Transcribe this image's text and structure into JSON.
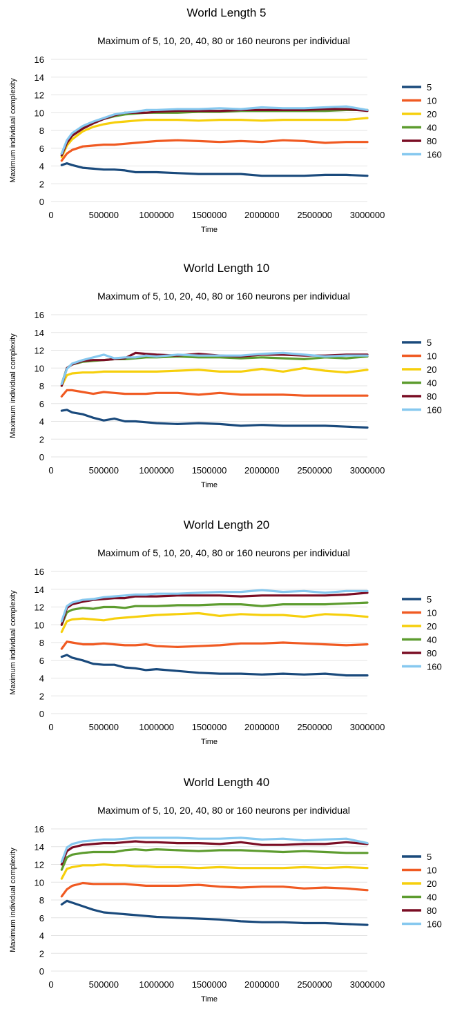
{
  "colors": {
    "5": "#1a4a7c",
    "10": "#f05a22",
    "20": "#f6cf0c",
    "40": "#5d9c2f",
    "80": "#7a0d24",
    "160": "#86c8ef"
  },
  "chart_data": [
    {
      "type": "line",
      "title": "World Length 5",
      "subtitle": "Maximum of 5, 10, 20, 40, 80 or 160 neurons per individual",
      "xlabel": "Time",
      "ylabel": "Maximum individual complexity",
      "xlim": [
        0,
        3000000
      ],
      "ylim": [
        0,
        16
      ],
      "xticks": [
        0,
        500000,
        1000000,
        1500000,
        2000000,
        2500000,
        3000000
      ],
      "yticks": [
        0,
        2,
        4,
        6,
        8,
        10,
        12,
        14,
        16
      ],
      "grid": true,
      "legend_position": "right",
      "x": [
        100000,
        150000,
        200000,
        300000,
        400000,
        500000,
        600000,
        700000,
        800000,
        900000,
        1000000,
        1200000,
        1400000,
        1600000,
        1800000,
        2000000,
        2200000,
        2400000,
        2600000,
        2800000,
        3000000
      ],
      "series": [
        {
          "name": "5",
          "values": [
            4.1,
            4.3,
            4.1,
            3.8,
            3.7,
            3.6,
            3.6,
            3.5,
            3.3,
            3.3,
            3.3,
            3.2,
            3.1,
            3.1,
            3.1,
            2.9,
            2.9,
            2.9,
            3.0,
            3.0,
            2.9
          ]
        },
        {
          "name": "10",
          "values": [
            4.6,
            5.4,
            5.8,
            6.2,
            6.3,
            6.4,
            6.4,
            6.5,
            6.6,
            6.7,
            6.8,
            6.9,
            6.8,
            6.7,
            6.8,
            6.7,
            6.9,
            6.8,
            6.6,
            6.7,
            6.7
          ]
        },
        {
          "name": "20",
          "values": [
            5.0,
            6.3,
            7.0,
            7.9,
            8.4,
            8.7,
            8.9,
            9.0,
            9.1,
            9.2,
            9.2,
            9.2,
            9.1,
            9.2,
            9.2,
            9.1,
            9.2,
            9.2,
            9.2,
            9.2,
            9.4
          ]
        },
        {
          "name": "40",
          "values": [
            5.4,
            6.7,
            7.4,
            8.3,
            8.8,
            9.3,
            9.6,
            9.8,
            9.9,
            10.0,
            10.0,
            10.0,
            10.1,
            10.1,
            10.2,
            10.2,
            10.2,
            10.2,
            10.2,
            10.3,
            10.3
          ]
        },
        {
          "name": "80",
          "values": [
            5.2,
            6.6,
            7.4,
            8.2,
            8.8,
            9.3,
            9.7,
            10.0,
            10.0,
            10.0,
            10.1,
            10.2,
            10.2,
            10.2,
            10.3,
            10.3,
            10.3,
            10.3,
            10.4,
            10.4,
            10.2
          ]
        },
        {
          "name": "160",
          "values": [
            5.4,
            6.9,
            7.7,
            8.5,
            9.0,
            9.4,
            9.8,
            10.0,
            10.1,
            10.3,
            10.3,
            10.4,
            10.4,
            10.5,
            10.4,
            10.6,
            10.5,
            10.5,
            10.6,
            10.7,
            10.3
          ]
        }
      ]
    },
    {
      "type": "line",
      "title": "World Length 10",
      "subtitle": "Maximum of 5, 10, 20, 40, 80 or 160 neurons per individual",
      "xlabel": "Time",
      "ylabel": "Maximum individual complexity",
      "xlim": [
        0,
        3000000
      ],
      "ylim": [
        0,
        16
      ],
      "xticks": [
        0,
        500000,
        1000000,
        1500000,
        2000000,
        2500000,
        3000000
      ],
      "yticks": [
        0,
        2,
        4,
        6,
        8,
        10,
        12,
        14,
        16
      ],
      "grid": true,
      "legend_position": "right",
      "x": [
        100000,
        150000,
        200000,
        300000,
        400000,
        500000,
        600000,
        700000,
        800000,
        900000,
        1000000,
        1200000,
        1400000,
        1600000,
        1800000,
        2000000,
        2200000,
        2400000,
        2600000,
        2800000,
        3000000
      ],
      "series": [
        {
          "name": "5",
          "values": [
            5.2,
            5.3,
            5.0,
            4.8,
            4.4,
            4.1,
            4.3,
            4.0,
            4.0,
            3.9,
            3.8,
            3.7,
            3.8,
            3.7,
            3.5,
            3.6,
            3.5,
            3.5,
            3.5,
            3.4,
            3.3
          ]
        },
        {
          "name": "10",
          "values": [
            6.8,
            7.5,
            7.5,
            7.3,
            7.1,
            7.3,
            7.2,
            7.1,
            7.1,
            7.1,
            7.2,
            7.2,
            7.0,
            7.2,
            7.0,
            7.0,
            7.0,
            6.9,
            6.9,
            6.9,
            6.9
          ]
        },
        {
          "name": "20",
          "values": [
            8.0,
            9.2,
            9.4,
            9.5,
            9.5,
            9.6,
            9.6,
            9.6,
            9.6,
            9.6,
            9.6,
            9.7,
            9.8,
            9.6,
            9.6,
            9.9,
            9.6,
            10.0,
            9.7,
            9.5,
            9.8
          ]
        },
        {
          "name": "40",
          "values": [
            8.2,
            10.0,
            10.4,
            10.7,
            10.8,
            10.9,
            11.0,
            11.0,
            11.1,
            11.2,
            11.2,
            11.3,
            11.2,
            11.2,
            11.1,
            11.2,
            11.1,
            11.0,
            11.2,
            11.1,
            11.3
          ]
        },
        {
          "name": "80",
          "values": [
            8.0,
            10.0,
            10.4,
            10.8,
            10.9,
            10.9,
            11.0,
            11.1,
            11.7,
            11.6,
            11.5,
            11.4,
            11.6,
            11.4,
            11.3,
            11.5,
            11.5,
            11.4,
            11.4,
            11.5,
            11.5
          ]
        },
        {
          "name": "160",
          "values": [
            8.2,
            9.9,
            10.5,
            10.9,
            11.2,
            11.5,
            11.1,
            11.2,
            11.2,
            11.4,
            11.3,
            11.5,
            11.4,
            11.4,
            11.4,
            11.6,
            11.7,
            11.5,
            11.3,
            11.4,
            11.4
          ]
        }
      ]
    },
    {
      "type": "line",
      "title": "World Length 20",
      "subtitle": "Maximum of 5, 10, 20, 40, 80 or 160 neurons per individual",
      "xlabel": "Time",
      "ylabel": "Maximum individual complexity",
      "xlim": [
        0,
        3000000
      ],
      "ylim": [
        0,
        16
      ],
      "xticks": [
        0,
        500000,
        1000000,
        1500000,
        2000000,
        2500000,
        3000000
      ],
      "yticks": [
        0,
        2,
        4,
        6,
        8,
        10,
        12,
        14,
        16
      ],
      "grid": true,
      "legend_position": "right",
      "x": [
        100000,
        150000,
        200000,
        300000,
        400000,
        500000,
        600000,
        700000,
        800000,
        900000,
        1000000,
        1200000,
        1400000,
        1600000,
        1800000,
        2000000,
        2200000,
        2400000,
        2600000,
        2800000,
        3000000
      ],
      "series": [
        {
          "name": "5",
          "values": [
            6.4,
            6.6,
            6.3,
            6.0,
            5.6,
            5.5,
            5.5,
            5.2,
            5.1,
            4.9,
            5.0,
            4.8,
            4.6,
            4.5,
            4.5,
            4.4,
            4.5,
            4.4,
            4.5,
            4.3,
            4.3
          ]
        },
        {
          "name": "10",
          "values": [
            7.3,
            8.1,
            8.0,
            7.8,
            7.8,
            7.9,
            7.8,
            7.7,
            7.7,
            7.8,
            7.6,
            7.5,
            7.6,
            7.7,
            7.9,
            7.9,
            8.0,
            7.9,
            7.8,
            7.7,
            7.8
          ]
        },
        {
          "name": "20",
          "values": [
            9.2,
            10.4,
            10.6,
            10.7,
            10.6,
            10.5,
            10.7,
            10.8,
            10.9,
            11.0,
            11.1,
            11.2,
            11.3,
            11.0,
            11.2,
            11.1,
            11.1,
            10.9,
            11.2,
            11.1,
            10.9
          ]
        },
        {
          "name": "40",
          "values": [
            10.0,
            11.4,
            11.7,
            11.9,
            11.8,
            12.0,
            12.0,
            11.9,
            12.1,
            12.1,
            12.1,
            12.2,
            12.2,
            12.3,
            12.3,
            12.1,
            12.3,
            12.3,
            12.3,
            12.4,
            12.5
          ]
        },
        {
          "name": "80",
          "values": [
            10.0,
            11.9,
            12.3,
            12.6,
            12.8,
            12.9,
            13.0,
            13.0,
            13.2,
            13.2,
            13.2,
            13.3,
            13.3,
            13.3,
            13.2,
            13.3,
            13.3,
            13.3,
            13.3,
            13.4,
            13.6
          ]
        },
        {
          "name": "160",
          "values": [
            10.4,
            12.1,
            12.5,
            12.8,
            12.9,
            13.1,
            13.2,
            13.3,
            13.4,
            13.4,
            13.5,
            13.5,
            13.6,
            13.7,
            13.7,
            13.9,
            13.7,
            13.8,
            13.6,
            13.8,
            13.8
          ]
        }
      ]
    },
    {
      "type": "line",
      "title": "World Length 40",
      "subtitle": "Maximum of 5, 10, 20, 40, 80 or 160 neurons per individual",
      "xlabel": "Time",
      "ylabel": "Maximum individual complexity",
      "xlim": [
        0,
        3000000
      ],
      "ylim": [
        0,
        16
      ],
      "xticks": [
        0,
        500000,
        1000000,
        1500000,
        2000000,
        2500000,
        3000000
      ],
      "yticks": [
        0,
        2,
        4,
        6,
        8,
        10,
        12,
        14,
        16
      ],
      "grid": true,
      "legend_position": "right",
      "x": [
        100000,
        150000,
        200000,
        300000,
        400000,
        500000,
        600000,
        700000,
        800000,
        900000,
        1000000,
        1200000,
        1400000,
        1600000,
        1800000,
        2000000,
        2200000,
        2400000,
        2600000,
        2800000,
        3000000
      ],
      "series": [
        {
          "name": "5",
          "values": [
            7.5,
            7.9,
            7.7,
            7.3,
            6.9,
            6.6,
            6.5,
            6.4,
            6.3,
            6.2,
            6.1,
            6.0,
            5.9,
            5.8,
            5.6,
            5.5,
            5.5,
            5.4,
            5.4,
            5.3,
            5.2
          ]
        },
        {
          "name": "10",
          "values": [
            8.4,
            9.2,
            9.6,
            9.9,
            9.8,
            9.8,
            9.8,
            9.8,
            9.7,
            9.6,
            9.6,
            9.6,
            9.7,
            9.5,
            9.4,
            9.5,
            9.5,
            9.3,
            9.4,
            9.3,
            9.1
          ]
        },
        {
          "name": "20",
          "values": [
            10.4,
            11.5,
            11.7,
            11.9,
            11.9,
            12.0,
            11.9,
            11.9,
            11.8,
            11.8,
            11.7,
            11.7,
            11.6,
            11.7,
            11.6,
            11.6,
            11.6,
            11.7,
            11.6,
            11.7,
            11.6
          ]
        },
        {
          "name": "40",
          "values": [
            11.4,
            12.8,
            13.1,
            13.3,
            13.4,
            13.4,
            13.4,
            13.6,
            13.7,
            13.6,
            13.7,
            13.6,
            13.5,
            13.6,
            13.6,
            13.5,
            13.4,
            13.5,
            13.4,
            13.3,
            13.3
          ]
        },
        {
          "name": "80",
          "values": [
            12.0,
            13.5,
            13.9,
            14.2,
            14.3,
            14.4,
            14.4,
            14.5,
            14.6,
            14.5,
            14.5,
            14.4,
            14.4,
            14.3,
            14.5,
            14.2,
            14.2,
            14.3,
            14.3,
            14.5,
            14.3
          ]
        },
        {
          "name": "160",
          "values": [
            12.3,
            13.9,
            14.3,
            14.6,
            14.7,
            14.8,
            14.8,
            14.9,
            15.0,
            15.0,
            15.0,
            15.0,
            14.9,
            14.9,
            15.0,
            14.8,
            14.9,
            14.7,
            14.8,
            14.9,
            14.4
          ]
        }
      ]
    }
  ]
}
